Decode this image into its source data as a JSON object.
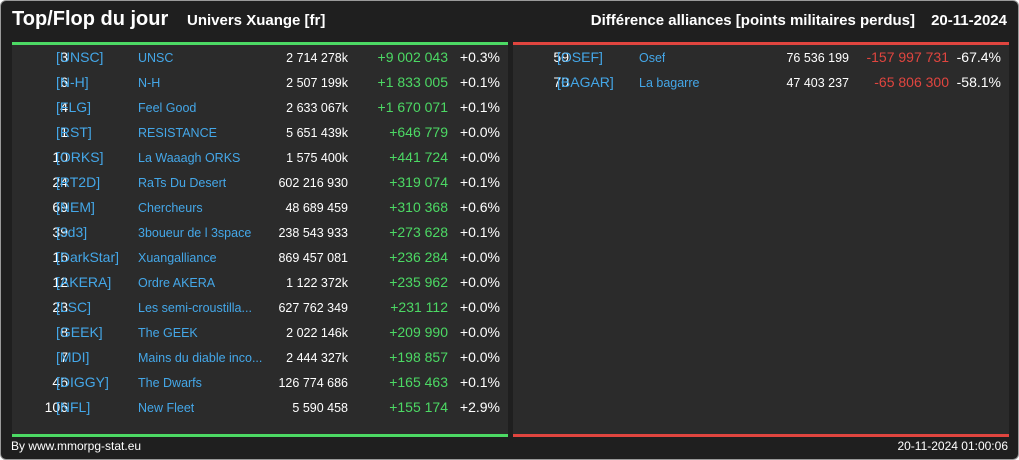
{
  "header": {
    "title": "Top/Flop du jour",
    "universe": "Univers Xuange [fr]",
    "subtitle": "Différence alliances [points militaires perdus]",
    "date": "20-11-2024"
  },
  "colors": {
    "top_accent": "#4cd964",
    "flop_accent": "#e0453f",
    "tag_color": "#44a7e8"
  },
  "top": [
    {
      "rank": "3",
      "tag": "[UNSC]",
      "name": "UNSC",
      "points": "2 714 278k",
      "diff": "+9 002 043",
      "pct": "+0.3%"
    },
    {
      "rank": "6",
      "tag": "[N-H]",
      "name": "N-H",
      "points": "2 507 199k",
      "diff": "+1 833 005",
      "pct": "+0.1%"
    },
    {
      "rank": "4",
      "tag": "[FLG]",
      "name": "Feel Good",
      "points": "2 633 067k",
      "diff": "+1 670 071",
      "pct": "+0.1%"
    },
    {
      "rank": "1",
      "tag": "[RST]",
      "name": "RESISTANCE",
      "points": "5 651 439k",
      "diff": "+646 779",
      "pct": "+0.0%"
    },
    {
      "rank": "10",
      "tag": "[ORKS]",
      "name": "La Waaagh ORKS",
      "points": "1 575 400k",
      "diff": "+441 724",
      "pct": "+0.0%"
    },
    {
      "rank": "24",
      "tag": "[RT2D]",
      "name": "RaTs Du Desert",
      "points": "602 216 930",
      "diff": "+319 074",
      "pct": "+0.1%"
    },
    {
      "rank": "69",
      "tag": "[NEM]",
      "name": "Chercheurs",
      "points": "48 689 459",
      "diff": "+310 368",
      "pct": "+0.6%"
    },
    {
      "rank": "39",
      "tag": "[3d3]",
      "name": "3boueur de l 3space",
      "points": "238 543 933",
      "diff": "+273 628",
      "pct": "+0.1%"
    },
    {
      "rank": "16",
      "tag": "[DarkStar]",
      "name": "Xuangalliance",
      "points": "869 457 081",
      "diff": "+236 284",
      "pct": "+0.0%"
    },
    {
      "rank": "12",
      "tag": "[AKERA]",
      "name": "Ordre AKERA",
      "points": "1 122 372k",
      "diff": "+235 962",
      "pct": "+0.0%"
    },
    {
      "rank": "23",
      "tag": "[LSC]",
      "name": "Les semi-croustilla...",
      "points": "627 762 349",
      "diff": "+231 112",
      "pct": "+0.0%"
    },
    {
      "rank": "8",
      "tag": "[GEEK]",
      "name": "The GEEK",
      "points": "2 022 146k",
      "diff": "+209 990",
      "pct": "+0.0%"
    },
    {
      "rank": "7",
      "tag": "[MDI]",
      "name": "Mains du diable inco...",
      "points": "2 444 327k",
      "diff": "+198 857",
      "pct": "+0.0%"
    },
    {
      "rank": "46",
      "tag": "[DIGGY]",
      "name": "The Dwarfs",
      "points": "126 774 686",
      "diff": "+165 463",
      "pct": "+0.1%"
    },
    {
      "rank": "106",
      "tag": "[NFL]",
      "name": "New Fleet",
      "points": "5 590 458",
      "diff": "+155 174",
      "pct": "+2.9%"
    }
  ],
  "flop": [
    {
      "rank": "59",
      "tag": "[OSEF]",
      "name": "Osef",
      "points": "76 536 199",
      "diff": "-157 997 731",
      "pct": "-67.4%"
    },
    {
      "rank": "70",
      "tag": "[BAGAR]",
      "name": "La bagarre",
      "points": "47 403 237",
      "diff": "-65 806 300",
      "pct": "-58.1%"
    }
  ],
  "footer": {
    "credit": "By www.mmorpg-stat.eu",
    "timestamp": "20-11-2024 01:00:06"
  }
}
